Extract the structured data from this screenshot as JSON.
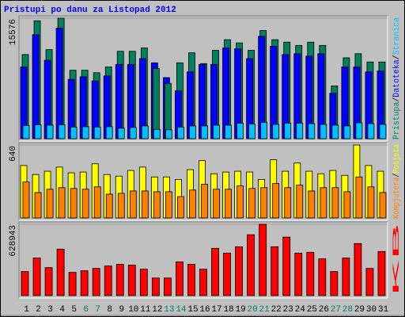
{
  "chart_data": [
    {
      "type": "bar",
      "title": "Pristupi po danu za Listopad 2012",
      "ylim": [
        0,
        15576
      ],
      "yticks": [
        15576
      ],
      "separator": "/",
      "series": [
        {
          "name": "Pristupa",
          "color": "#00805c",
          "values": [
            10880,
            15250,
            11520,
            15576,
            8850,
            8850,
            8530,
            9280,
            11300,
            11300,
            11730,
            9070,
            7150,
            9810,
            11100,
            9710,
            11420,
            12800,
            12380,
            11420,
            13980,
            12800,
            12480,
            12060,
            12480,
            12060,
            6830,
            10460,
            10990,
            9920,
            9920
          ]
        },
        {
          "name": "Datoteka",
          "color": "#0000ff",
          "values": [
            9280,
            13440,
            10130,
            14300,
            7680,
            8000,
            7470,
            8110,
            9600,
            9600,
            10350,
            9810,
            7900,
            6190,
            8640,
            9600,
            9600,
            11730,
            11630,
            10350,
            13230,
            11950,
            10880,
            10990,
            10670,
            10990,
            5870,
            9280,
            9280,
            8640,
            8750
          ]
        },
        {
          "name": "Stranica",
          "color": "#00c0ff",
          "values": [
            1700,
            1800,
            1750,
            1800,
            1500,
            1550,
            1500,
            1550,
            1350,
            1450,
            1650,
            1200,
            1150,
            1500,
            1650,
            1650,
            1750,
            1750,
            2000,
            1900,
            2100,
            1850,
            2000,
            2000,
            1950,
            1850,
            1750,
            1650,
            2050,
            1950,
            1850
          ]
        }
      ]
    },
    {
      "type": "bar",
      "ylim": [
        0,
        640
      ],
      "yticks": [
        640
      ],
      "separator": "/",
      "series": [
        {
          "name": "Kompjutera",
          "color": "#ff8000",
          "values": [
            316,
            223,
            252,
            266,
            259,
            252,
            273,
            209,
            216,
            237,
            237,
            230,
            230,
            187,
            245,
            295,
            252,
            252,
            281,
            259,
            266,
            302,
            266,
            288,
            237,
            266,
            266,
            230,
            360,
            273,
            223
          ]
        },
        {
          "name": "Posjeta",
          "color": "#ffff00",
          "values": [
            460,
            381,
            410,
            446,
            396,
            403,
            475,
            381,
            367,
            417,
            446,
            360,
            360,
            338,
            424,
            503,
            388,
            403,
            410,
            403,
            338,
            511,
            410,
            482,
            410,
            388,
            417,
            374,
            640,
            460,
            410
          ]
        }
      ]
    },
    {
      "type": "bar",
      "ylim": [
        0,
        628943
      ],
      "yticks": [
        628943
      ],
      "categories": [
        "1",
        "2",
        "3",
        "4",
        "5",
        "6",
        "7",
        "8",
        "9",
        "10",
        "11",
        "12",
        "13",
        "14",
        "15",
        "16",
        "17",
        "18",
        "19",
        "20",
        "21",
        "22",
        "23",
        "24",
        "25",
        "26",
        "27",
        "28",
        "29",
        "30",
        "31"
      ],
      "weekends": [
        5,
        6,
        12,
        13,
        19,
        20,
        26,
        27
      ],
      "weekend_color": "#00805c",
      "series": [
        {
          "name": "KB",
          "color": "#ff0000",
          "values": [
            212000,
            332000,
            247000,
            410000,
            205000,
            219000,
            240000,
            261000,
            276000,
            269000,
            233000,
            155000,
            155000,
            297000,
            276000,
            233000,
            417000,
            375000,
            431000,
            537000,
            628943,
            431000,
            516000,
            375000,
            382000,
            325000,
            212000,
            332000,
            459000,
            240000,
            389000
          ]
        }
      ]
    }
  ]
}
